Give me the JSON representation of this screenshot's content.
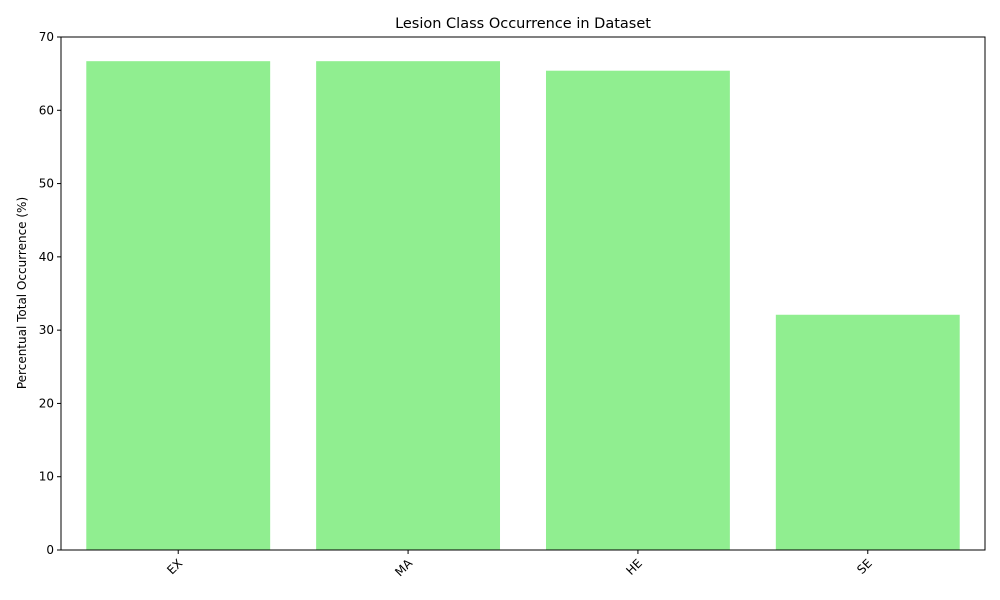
{
  "chart_data": {
    "type": "bar",
    "title": "Lesion Class Occurrence in Dataset",
    "xlabel": "",
    "ylabel": "Percentual Total Occurrence (%)",
    "categories": [
      "EX",
      "MA",
      "HE",
      "SE"
    ],
    "values": [
      66.7,
      66.7,
      65.4,
      32.1
    ],
    "ylim": [
      0,
      70
    ],
    "yticks": [
      0,
      10,
      20,
      30,
      40,
      50,
      60,
      70
    ],
    "bar_color": "#90ee90",
    "x_tick_rotation_deg": 45,
    "grid": false,
    "legend": "none"
  }
}
